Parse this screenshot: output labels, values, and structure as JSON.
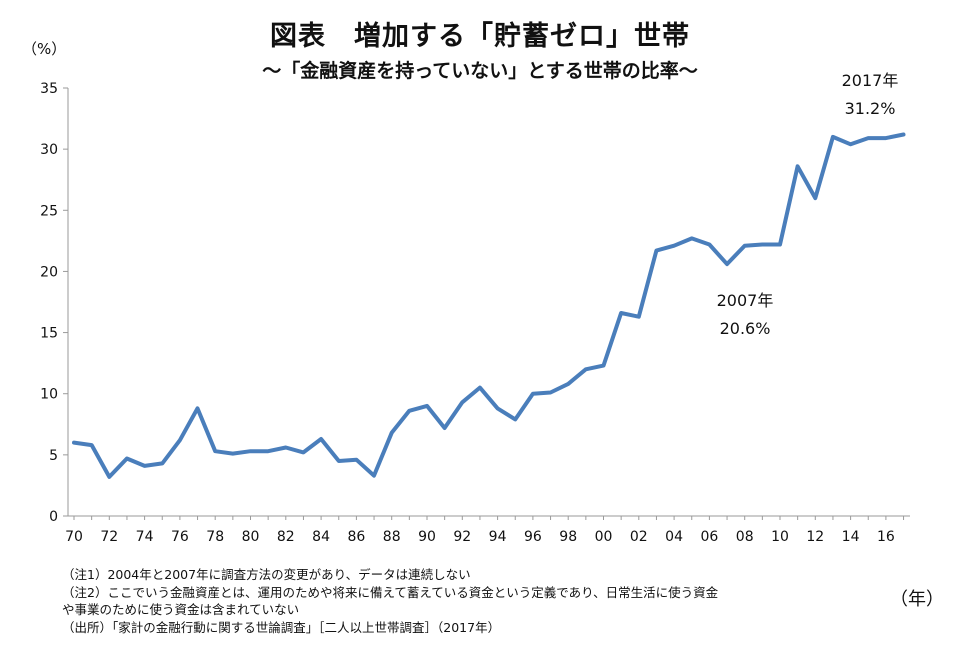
{
  "chart_data": {
    "type": "line",
    "title": "図表　増加する「貯蓄ゼロ」世帯",
    "subtitle": "～「金融資産を持っていない」とする世帯の比率～",
    "ylabel": "（%）",
    "xlabel": "（年）",
    "ylim": [
      0,
      35
    ],
    "yticks": [
      "0",
      "5",
      "10",
      "15",
      "20",
      "25",
      "30",
      "35"
    ],
    "xticks": [
      "70",
      "72",
      "74",
      "76",
      "78",
      "80",
      "82",
      "84",
      "86",
      "88",
      "90",
      "92",
      "94",
      "96",
      "98",
      "00",
      "02",
      "04",
      "06",
      "08",
      "10",
      "12",
      "14",
      "16"
    ],
    "grid": false,
    "line_color": "#4a7ebb",
    "x": [
      1970,
      1971,
      1972,
      1973,
      1974,
      1975,
      1976,
      1977,
      1978,
      1979,
      1980,
      1981,
      1982,
      1983,
      1984,
      1985,
      1986,
      1987,
      1988,
      1989,
      1990,
      1991,
      1992,
      1993,
      1994,
      1995,
      1996,
      1997,
      1998,
      1999,
      2000,
      2001,
      2002,
      2003,
      2004,
      2005,
      2006,
      2007,
      2008,
      2009,
      2010,
      2011,
      2012,
      2013,
      2014,
      2015,
      2016,
      2017
    ],
    "series": [
      {
        "values": [
          6.0,
          5.8,
          3.2,
          4.7,
          4.1,
          4.3,
          6.2,
          8.8,
          5.3,
          5.1,
          5.3,
          5.3,
          5.6,
          5.2,
          6.3,
          4.5,
          4.6,
          3.3,
          6.8,
          8.6,
          9.0,
          7.2,
          9.3,
          10.5,
          8.8,
          7.9,
          10.0,
          10.1,
          10.8,
          12.0,
          12.3,
          16.6,
          16.3,
          21.7,
          22.1,
          22.7,
          22.2,
          20.6,
          22.1,
          22.2,
          22.2,
          28.6,
          26.0,
          31.0,
          30.4,
          30.9,
          30.9,
          31.2
        ]
      }
    ],
    "annotations": [
      {
        "year_label": "2007年",
        "value_label": "20.6%"
      },
      {
        "year_label": "2017年",
        "value_label": "31.2%"
      }
    ]
  },
  "notes": [
    "（注1）2004年と2007年に調査方法の変更があり、データは連続しない",
    "（注2）ここでいう金融資産とは、運用のためや将来に備えて蓄えている資金という定義であり、日常生活に使う資金",
    "や事業のために使う資金は含まれていない",
    "（出所）「家計の金融行動に関する世論調査」［二人以上世帯調査］（2017年）"
  ]
}
